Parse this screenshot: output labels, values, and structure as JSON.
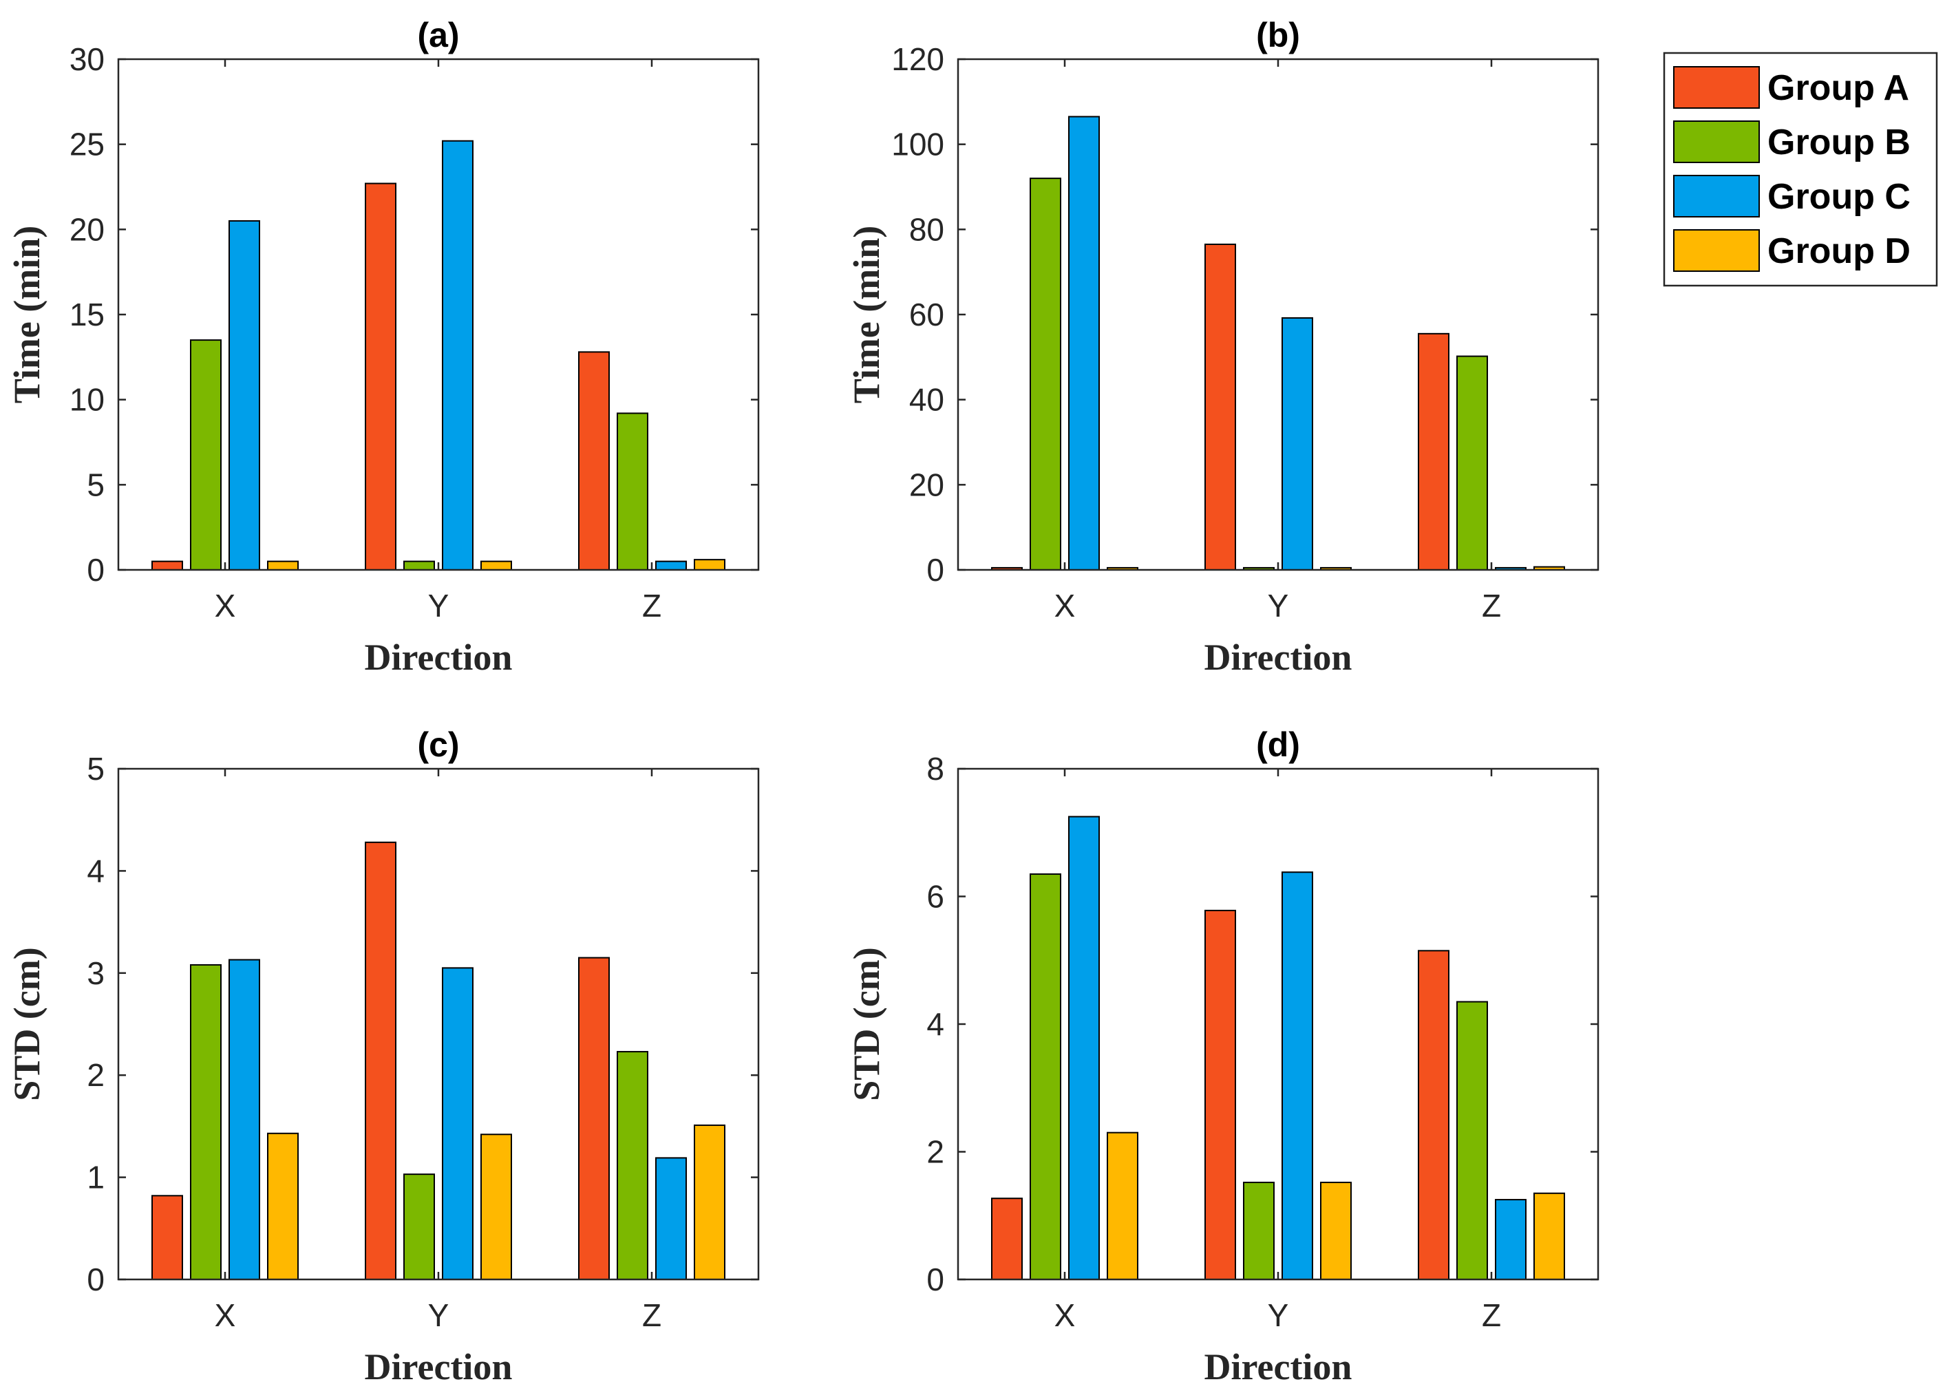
{
  "legend": {
    "entries": [
      "Group A",
      "Group B",
      "Group C",
      "Group D"
    ],
    "colors": [
      "#F4511E",
      "#7CB800",
      "#009FEA",
      "#FFB800"
    ],
    "placement": "top-right"
  },
  "chart_data": [
    {
      "id": "a",
      "type": "bar",
      "title": "(a)",
      "xlabel": "Direction",
      "ylabel": "Time (min)",
      "categories": [
        "X",
        "Y",
        "Z"
      ],
      "ylim": [
        0,
        30
      ],
      "yticks": [
        0,
        5,
        10,
        15,
        20,
        25,
        30
      ],
      "series": [
        {
          "name": "Group A",
          "values": [
            0.5,
            22.7,
            12.8
          ]
        },
        {
          "name": "Group B",
          "values": [
            13.5,
            0.5,
            9.2
          ]
        },
        {
          "name": "Group C",
          "values": [
            20.5,
            25.2,
            0.5
          ]
        },
        {
          "name": "Group D",
          "values": [
            0.5,
            0.5,
            0.6
          ]
        }
      ]
    },
    {
      "id": "b",
      "type": "bar",
      "title": "(b)",
      "xlabel": "Direction",
      "ylabel": "Time (min)",
      "categories": [
        "X",
        "Y",
        "Z"
      ],
      "ylim": [
        0,
        120
      ],
      "yticks": [
        0,
        20,
        40,
        60,
        80,
        100,
        120
      ],
      "series": [
        {
          "name": "Group A",
          "values": [
            0.5,
            76.5,
            55.5
          ]
        },
        {
          "name": "Group B",
          "values": [
            92,
            0.5,
            50.2
          ]
        },
        {
          "name": "Group C",
          "values": [
            106.5,
            59.2,
            0.5
          ]
        },
        {
          "name": "Group D",
          "values": [
            0.5,
            0.5,
            0.7
          ]
        }
      ]
    },
    {
      "id": "c",
      "type": "bar",
      "title": "(c)",
      "xlabel": "Direction",
      "ylabel": "STD (cm)",
      "categories": [
        "X",
        "Y",
        "Z"
      ],
      "ylim": [
        0,
        5
      ],
      "yticks": [
        0,
        1,
        2,
        3,
        4,
        5
      ],
      "series": [
        {
          "name": "Group A",
          "values": [
            0.82,
            4.28,
            3.15
          ]
        },
        {
          "name": "Group B",
          "values": [
            3.08,
            1.03,
            2.23
          ]
        },
        {
          "name": "Group C",
          "values": [
            3.13,
            3.05,
            1.19
          ]
        },
        {
          "name": "Group D",
          "values": [
            1.43,
            1.42,
            1.51
          ]
        }
      ]
    },
    {
      "id": "d",
      "type": "bar",
      "title": "(d)",
      "xlabel": "Direction",
      "ylabel": "STD (cm)",
      "categories": [
        "X",
        "Y",
        "Z"
      ],
      "ylim": [
        0,
        8
      ],
      "yticks": [
        0,
        2,
        4,
        6,
        8
      ],
      "series": [
        {
          "name": "Group A",
          "values": [
            1.27,
            5.78,
            5.15
          ]
        },
        {
          "name": "Group B",
          "values": [
            6.35,
            1.52,
            4.35
          ]
        },
        {
          "name": "Group C",
          "values": [
            7.25,
            6.38,
            1.25
          ]
        },
        {
          "name": "Group D",
          "values": [
            2.3,
            1.52,
            1.35
          ]
        }
      ]
    }
  ]
}
